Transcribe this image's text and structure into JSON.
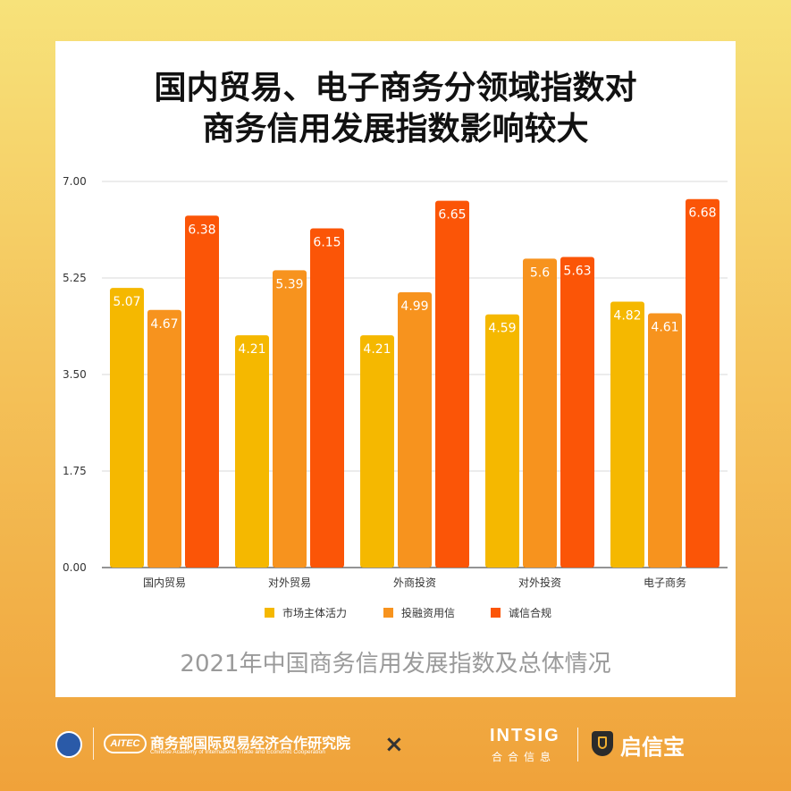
{
  "card": {
    "title_line1": "国内贸易、电子商务分领域指数对",
    "title_line2": "商务信用发展指数影响较大",
    "subtitle": "2021年中国商务信用发展指数及总体情况"
  },
  "chart_data": {
    "type": "bar",
    "categories": [
      "国内贸易",
      "对外贸易",
      "外商投资",
      "对外投资",
      "电子商务"
    ],
    "series": [
      {
        "name": "市场主体活力",
        "color": "#f5b800",
        "values": [
          5.07,
          4.21,
          4.21,
          4.59,
          4.82
        ]
      },
      {
        "name": "投融资用信",
        "color": "#f7931e",
        "values": [
          4.67,
          5.39,
          4.99,
          5.6,
          4.61
        ]
      },
      {
        "name": "诚信合规",
        "color": "#fb5507",
        "values": [
          6.38,
          6.15,
          6.65,
          5.63,
          6.68
        ]
      }
    ],
    "value_labels": [
      [
        "5.07",
        "4.21",
        "4.21",
        "4.59",
        "4.82"
      ],
      [
        "4.67",
        "5.39",
        "4.99",
        "5.6",
        "4.61"
      ],
      [
        "6.38",
        "6.15",
        "6.65",
        "5.63",
        "6.68"
      ]
    ],
    "ylim": [
      0,
      7
    ],
    "yticks": [
      "0.00",
      "1.75",
      "3.50",
      "5.25",
      "7.00"
    ],
    "ytick_values": [
      0,
      1.75,
      3.5,
      5.25,
      7
    ],
    "grid": true,
    "legend_position": "bottom"
  },
  "footer": {
    "caitec_mark": "AITEC",
    "org_name": "商务部国际贸易经济合作研究院",
    "org_name_en": "Chinese Academy of International Trade and Economic Cooperation",
    "times_sign": "×",
    "intsig": "INTSIG",
    "intsig_cn": "合合信息",
    "brand_cn": "启信宝"
  }
}
